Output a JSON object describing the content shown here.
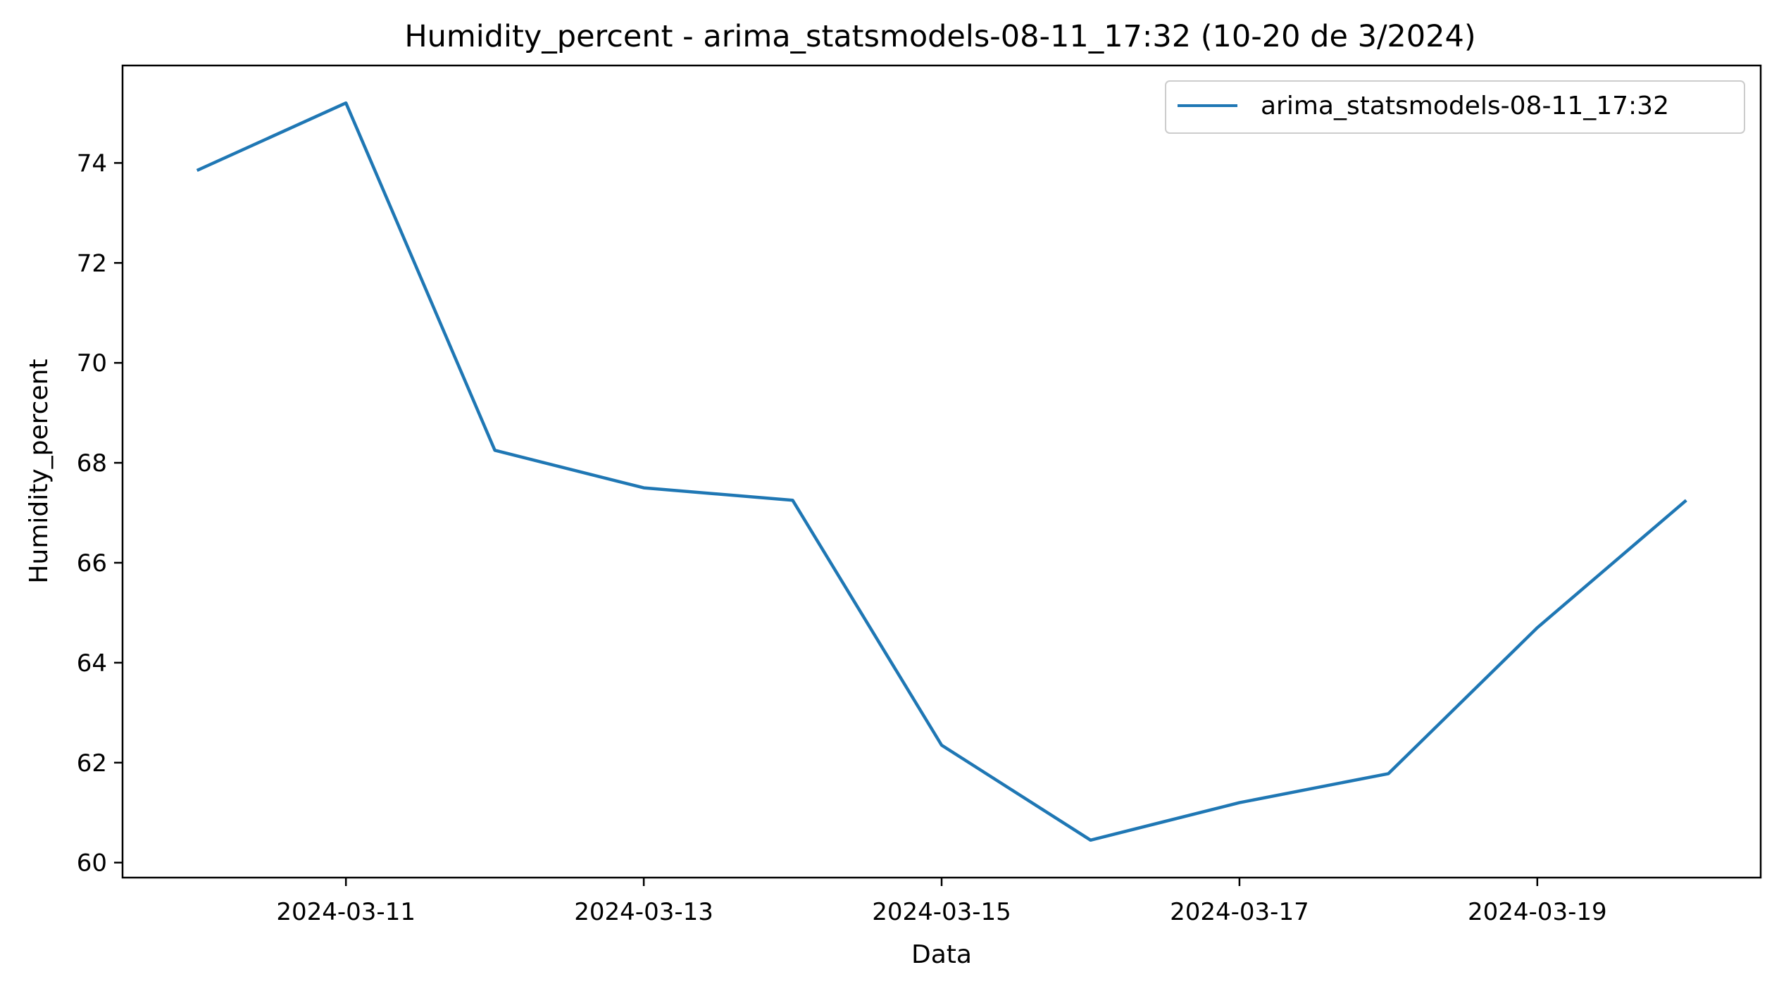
{
  "chart_data": {
    "type": "line",
    "title": "Humidity_percent - arima_statsmodels-08-11_17:32 (10-20 de 3/2024)",
    "xlabel": "Data",
    "ylabel": "Humidity_percent",
    "x": [
      "2024-03-10",
      "2024-03-11",
      "2024-03-12",
      "2024-03-13",
      "2024-03-14",
      "2024-03-15",
      "2024-03-16",
      "2024-03-17",
      "2024-03-18",
      "2024-03-19",
      "2024-03-20"
    ],
    "series": [
      {
        "name": "arima_statsmodels-08-11_17:32",
        "color": "#1f77b4",
        "values": [
          73.85,
          75.2,
          68.25,
          67.5,
          67.25,
          62.35,
          60.45,
          61.2,
          61.78,
          64.7,
          67.25
        ]
      }
    ],
    "xticks": [
      "2024-03-11",
      "2024-03-13",
      "2024-03-15",
      "2024-03-17",
      "2024-03-19"
    ],
    "yticks": [
      60,
      62,
      64,
      66,
      68,
      70,
      72,
      74
    ],
    "xlim": [
      "2024-03-09T12:00",
      "2024-03-20T12:00"
    ],
    "ylim": [
      59.7,
      75.95
    ],
    "grid": false,
    "legend": "upper right"
  }
}
